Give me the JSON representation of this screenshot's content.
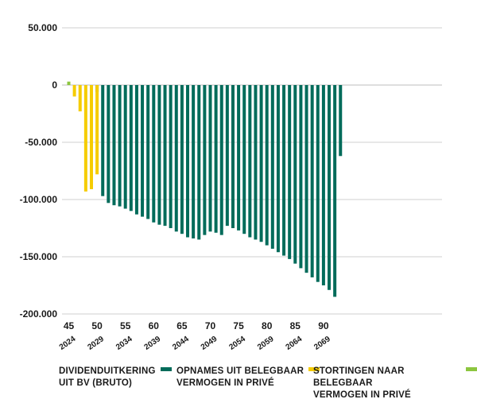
{
  "chart_data": {
    "type": "bar",
    "title": "",
    "xlabel": "",
    "ylabel": "",
    "ylim": [
      -200000,
      50000
    ],
    "yticks": [
      50000,
      0,
      -50000,
      -100000,
      -150000,
      -200000
    ],
    "ytick_labels": [
      "50.000",
      "0",
      "-50.000",
      "-100.000",
      "-150.000",
      "-200.000"
    ],
    "grid": "horizontal",
    "x_start": 45,
    "xticks": [
      45,
      50,
      55,
      60,
      65,
      70,
      75,
      80,
      85,
      90
    ],
    "year_labels": [
      {
        "x": 45,
        "label": "2024"
      },
      {
        "x": 50,
        "label": "2029"
      },
      {
        "x": 55,
        "label": "2034"
      },
      {
        "x": 60,
        "label": "2039"
      },
      {
        "x": 65,
        "label": "2044"
      },
      {
        "x": 70,
        "label": "2049"
      },
      {
        "x": 75,
        "label": "2054"
      },
      {
        "x": 80,
        "label": "2059"
      },
      {
        "x": 85,
        "label": "2064"
      },
      {
        "x": 90,
        "label": "2069"
      }
    ],
    "legend_position": "bottom",
    "series": [
      {
        "name": "DIVIDENDUITKERING\nUIT BV (BRUTO)",
        "color": "#006b5a",
        "values": [
          0,
          0,
          0,
          0,
          0,
          -6000,
          -97000,
          -103000,
          -105000,
          -106000,
          -108000,
          -110000,
          -113000,
          -115000,
          -117000,
          -120000,
          -122000,
          -123000,
          -125000,
          -128000,
          -130000,
          -133000,
          -134000,
          -135000,
          -131000,
          -128000,
          -129000,
          -131000,
          -123000,
          -125000,
          -127000,
          -130000,
          -133000,
          -135000,
          -137000,
          -140000,
          -143000,
          -146000,
          -149000,
          -152000,
          -156000,
          -160000,
          -164000,
          -168000,
          -172000,
          -175000,
          -179000,
          -185000,
          -62000
        ]
      },
      {
        "name": "OPNAMES UIT BELEGBAAR\nVERMOGEN IN PRIVÉ",
        "color": "#f5cc00",
        "values": [
          0,
          -10000,
          -23000,
          -93000,
          -91000,
          -78000,
          0,
          0,
          0,
          0,
          0,
          0,
          0,
          0,
          0,
          0,
          0,
          0,
          0,
          0,
          0,
          0,
          0,
          0,
          0,
          0,
          0,
          0,
          0,
          0,
          0,
          0,
          0,
          0,
          0,
          0,
          0,
          0,
          0,
          0,
          0,
          0,
          0,
          0,
          0,
          0,
          0,
          0,
          0
        ]
      },
      {
        "name": "STORTINGEN NAAR BELEGBAAR\nVERMOGEN IN PRIVÉ",
        "color": "#8cc63f",
        "values": [
          3000,
          0,
          0,
          0,
          0,
          0,
          0,
          0,
          0,
          0,
          0,
          0,
          0,
          0,
          0,
          0,
          0,
          0,
          0,
          0,
          0,
          0,
          0,
          0,
          0,
          0,
          0,
          0,
          0,
          0,
          0,
          0,
          0,
          0,
          0,
          0,
          0,
          0,
          0,
          0,
          0,
          0,
          0,
          0,
          0,
          0,
          0,
          0,
          0
        ]
      }
    ]
  }
}
